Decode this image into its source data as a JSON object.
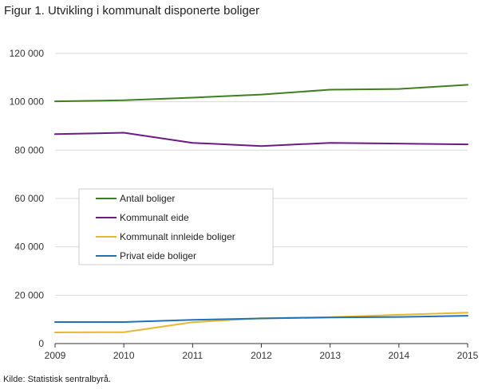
{
  "title": "Figur 1. Utvikling i kommunalt disponerte boliger",
  "source": "Kilde: Statistisk sentralbyrå.",
  "chart_data": {
    "type": "line",
    "title": "Figur 1. Utvikling i kommunalt disponerte boliger",
    "x": [
      2009,
      2010,
      2011,
      2012,
      2013,
      2014,
      2015
    ],
    "xlabel": "",
    "ylabel": "",
    "ylim": [
      0,
      120000
    ],
    "yticks": [
      0,
      20000,
      40000,
      60000,
      80000,
      100000,
      120000
    ],
    "ytick_labels": [
      "0",
      "20 000",
      "40 000",
      "60 000",
      "80 000",
      "100 000",
      "120 000"
    ],
    "grid": true,
    "legend_position": "center-left",
    "series": [
      {
        "name": "Antall boliger",
        "color": "#3f7f1f",
        "values": [
          100200,
          100600,
          101700,
          103000,
          105000,
          105300,
          107000
        ]
      },
      {
        "name": "Kommunalt eide",
        "color": "#6a1b86",
        "values": [
          86600,
          87200,
          83000,
          81700,
          83000,
          82700,
          82400
        ]
      },
      {
        "name": "Kommunalt innleide boliger",
        "color": "#e8b730",
        "values": [
          4600,
          4700,
          8800,
          10500,
          10900,
          11900,
          12800
        ]
      },
      {
        "name": "Privat eide boliger",
        "color": "#1f72b8",
        "values": [
          8900,
          8900,
          9800,
          10400,
          10800,
          11000,
          11500
        ]
      }
    ]
  }
}
